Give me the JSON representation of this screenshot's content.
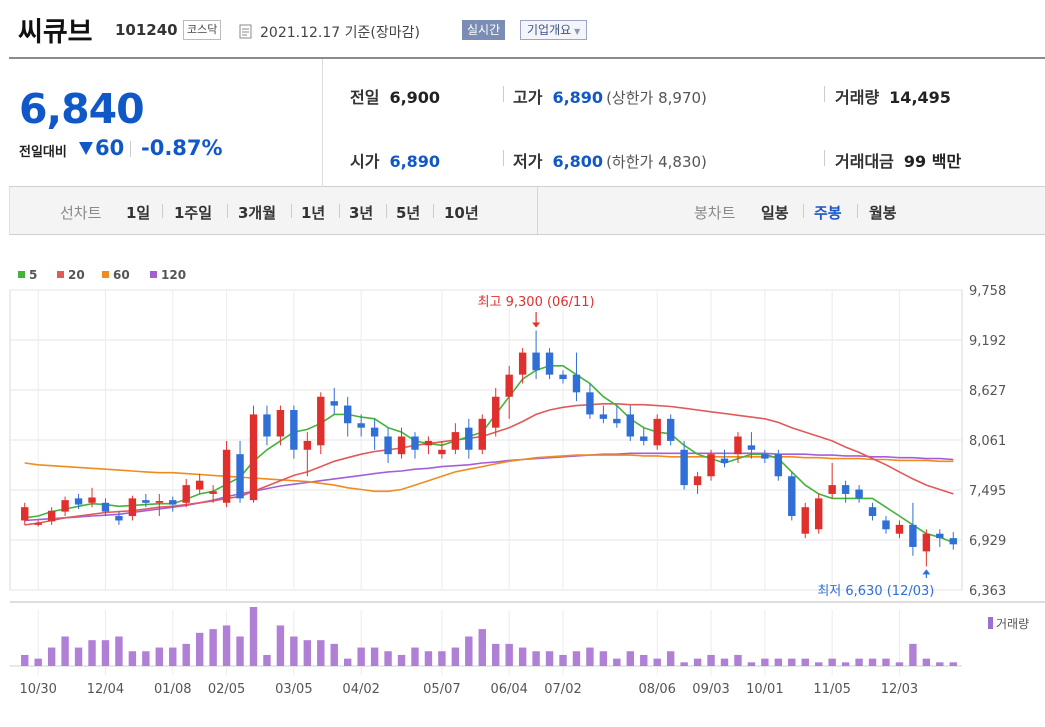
{
  "header": {
    "name": "씨큐브",
    "code": "101240",
    "market": "코스닥",
    "date": "2021.12.17 기준(장마감)",
    "realtime_label": "실시간",
    "company_label": "기업개요"
  },
  "quote": {
    "price": "6,840",
    "change_label": "전일대비",
    "change": "60",
    "change_pct": "-0.87%",
    "prev_close_label": "전일",
    "prev_close": "6,900",
    "open_label": "시가",
    "open": "6,890",
    "high_label": "고가",
    "high": "6,890",
    "upper_limit": "(상한가 8,970)",
    "low_label": "저가",
    "low": "6,800",
    "lower_limit": "(하한가 4,830)",
    "volume_label": "거래량",
    "volume": "14,495",
    "amount_label": "거래대금",
    "amount": "99 백만"
  },
  "period_bar": {
    "line_chart_label": "선차트",
    "periods": [
      "1일",
      "1주일",
      "3개월",
      "1년",
      "3년",
      "5년",
      "10년"
    ],
    "candle_label": "봉차트",
    "candles": [
      "일봉",
      "주봉",
      "월봉"
    ],
    "active_candle": "주봉"
  },
  "colors": {
    "up": "#e0302d",
    "down": "#2f6fd6",
    "ma5": "#44b33a",
    "ma20": "#e05a5a",
    "ma60": "#f08c1e",
    "ma120": "#a55fd6"
  },
  "chart_data": {
    "type": "candlestick",
    "legend": [
      "5",
      "20",
      "60",
      "120"
    ],
    "y_ticks": [
      "9,758",
      "9,192",
      "8,627",
      "8,061",
      "7,495",
      "6,929",
      "6,363"
    ],
    "ylim": [
      6363,
      9758
    ],
    "x_tick_labels": [
      "10/30",
      "12/04",
      "01/08",
      "02/05",
      "03/05",
      "04/02",
      "05/07",
      "06/04",
      "07/02",
      "08/06",
      "09/03",
      "10/01",
      "11/05",
      "12/03"
    ],
    "high_annotation": "최고 9,300 (06/11)",
    "low_annotation": "최저 6,630 (12/03)",
    "volume_label": "거래량",
    "candles": [
      [
        7150,
        7300,
        7100,
        7350
      ],
      [
        7100,
        7120,
        7080,
        7150
      ],
      [
        7140,
        7260,
        7100,
        7300
      ],
      [
        7250,
        7380,
        7200,
        7420
      ],
      [
        7400,
        7330,
        7280,
        7450
      ],
      [
        7350,
        7410,
        7300,
        7520
      ],
      [
        7350,
        7250,
        7200,
        7400
      ],
      [
        7200,
        7150,
        7100,
        7250
      ],
      [
        7200,
        7400,
        7150,
        7430
      ],
      [
        7380,
        7350,
        7300,
        7450
      ],
      [
        7350,
        7370,
        7200,
        7450
      ],
      [
        7380,
        7330,
        7250,
        7420
      ],
      [
        7350,
        7550,
        7300,
        7620
      ],
      [
        7500,
        7600,
        7450,
        7680
      ],
      [
        7450,
        7480,
        7350,
        7550
      ],
      [
        7350,
        7950,
        7300,
        8050
      ],
      [
        7900,
        7400,
        7350,
        8050
      ],
      [
        7380,
        8350,
        7350,
        8450
      ],
      [
        8350,
        8100,
        8000,
        8450
      ],
      [
        8100,
        8400,
        8000,
        8450
      ],
      [
        8400,
        7950,
        7850,
        8450
      ],
      [
        7950,
        8050,
        7650,
        8150
      ],
      [
        8000,
        8550,
        7900,
        8600
      ],
      [
        8500,
        8450,
        8350,
        8650
      ],
      [
        8450,
        8250,
        8100,
        8550
      ],
      [
        8250,
        8200,
        8100,
        8350
      ],
      [
        8200,
        8100,
        7950,
        8300
      ],
      [
        8100,
        7900,
        7800,
        8200
      ],
      [
        7900,
        8100,
        7850,
        8200
      ],
      [
        8100,
        7950,
        7850,
        8150
      ],
      [
        8000,
        8050,
        7900,
        8100
      ],
      [
        7900,
        7950,
        7850,
        8050
      ],
      [
        7950,
        8150,
        7900,
        8250
      ],
      [
        8200,
        7950,
        7850,
        8300
      ],
      [
        7950,
        8300,
        7900,
        8350
      ],
      [
        8200,
        8550,
        8100,
        8650
      ],
      [
        8550,
        8800,
        8300,
        8900
      ],
      [
        8800,
        9050,
        8700,
        9100
      ],
      [
        9050,
        8850,
        8750,
        9300
      ],
      [
        9050,
        8800,
        8750,
        9100
      ],
      [
        8800,
        8750,
        8700,
        8850
      ],
      [
        8800,
        8600,
        8500,
        9050
      ],
      [
        8600,
        8350,
        8300,
        8700
      ],
      [
        8350,
        8300,
        8250,
        8450
      ],
      [
        8300,
        8250,
        8200,
        8450
      ],
      [
        8350,
        8100,
        8050,
        8450
      ],
      [
        8100,
        8050,
        8000,
        8200
      ],
      [
        8000,
        8300,
        7950,
        8350
      ],
      [
        8300,
        8050,
        8000,
        8350
      ],
      [
        7950,
        7550,
        7500,
        8050
      ],
      [
        7550,
        7650,
        7450,
        7700
      ],
      [
        7650,
        7900,
        7600,
        7950
      ],
      [
        7850,
        7800,
        7750,
        7950
      ],
      [
        7900,
        8100,
        7800,
        8150
      ],
      [
        8000,
        7950,
        7850,
        8150
      ],
      [
        7900,
        7850,
        7800,
        7950
      ],
      [
        7900,
        7650,
        7600,
        7950
      ],
      [
        7650,
        7200,
        7150,
        7700
      ],
      [
        7000,
        7300,
        6950,
        7350
      ],
      [
        7050,
        7400,
        7000,
        7450
      ],
      [
        7450,
        7550,
        7400,
        7800
      ],
      [
        7550,
        7450,
        7350,
        7600
      ],
      [
        7500,
        7400,
        7350,
        7550
      ],
      [
        7300,
        7200,
        7150,
        7350
      ],
      [
        7150,
        7050,
        7000,
        7200
      ],
      [
        7000,
        7100,
        6950,
        7150
      ],
      [
        7100,
        6850,
        6750,
        7350
      ],
      [
        6800,
        7000,
        6630,
        7050
      ],
      [
        7000,
        6950,
        6850,
        7050
      ],
      [
        6950,
        6880,
        6820,
        7020
      ]
    ],
    "volumes": [
      3,
      2,
      5,
      8,
      5,
      7,
      7,
      8,
      4,
      4,
      5,
      5,
      6,
      9,
      10,
      11,
      8,
      16,
      3,
      11,
      8,
      7,
      7,
      6,
      2,
      5,
      5,
      4,
      3,
      5,
      4,
      4,
      5,
      8,
      10,
      6,
      6,
      5,
      4,
      4,
      3,
      4,
      5,
      4,
      2,
      4,
      3,
      2,
      4,
      1,
      2,
      3,
      2,
      3,
      1,
      2,
      2,
      2,
      2,
      1,
      2,
      1,
      2,
      2,
      2,
      1,
      6,
      2,
      1,
      1
    ],
    "ma5": [
      7180,
      7200,
      7250,
      7280,
      7310,
      7340,
      7330,
      7310,
      7320,
      7330,
      7340,
      7340,
      7390,
      7450,
      7480,
      7560,
      7640,
      7820,
      7950,
      8050,
      8150,
      8180,
      8250,
      8350,
      8350,
      8320,
      8300,
      8200,
      8150,
      8050,
      8020,
      8000,
      8050,
      8100,
      8150,
      8350,
      8550,
      8750,
      8850,
      8900,
      8900,
      8800,
      8700,
      8550,
      8450,
      8300,
      8200,
      8150,
      8130,
      8000,
      7900,
      7850,
      7800,
      7850,
      7900,
      7900,
      7850,
      7700,
      7550,
      7450,
      7400,
      7400,
      7400,
      7400,
      7300,
      7200,
      7100,
      7000,
      6960,
      6900
    ],
    "ma20": [
      7100,
      7120,
      7150,
      7180,
      7200,
      7220,
      7240,
      7250,
      7260,
      7280,
      7300,
      7310,
      7330,
      7350,
      7370,
      7400,
      7420,
      7480,
      7540,
      7600,
      7660,
      7700,
      7760,
      7820,
      7860,
      7900,
      7930,
      7950,
      7970,
      8000,
      8020,
      8040,
      8060,
      8080,
      8100,
      8150,
      8200,
      8270,
      8350,
      8400,
      8430,
      8450,
      8460,
      8470,
      8470,
      8460,
      8460,
      8450,
      8440,
      8420,
      8400,
      8380,
      8360,
      8340,
      8320,
      8300,
      8260,
      8200,
      8150,
      8100,
      8050,
      7980,
      7920,
      7850,
      7780,
      7700,
      7620,
      7550,
      7500,
      7450
    ],
    "ma60": [
      7800,
      7780,
      7770,
      7760,
      7750,
      7740,
      7730,
      7720,
      7710,
      7700,
      7690,
      7690,
      7680,
      7670,
      7660,
      7650,
      7640,
      7630,
      7620,
      7610,
      7600,
      7590,
      7570,
      7550,
      7520,
      7500,
      7480,
      7480,
      7500,
      7550,
      7600,
      7650,
      7700,
      7730,
      7760,
      7790,
      7820,
      7840,
      7860,
      7870,
      7880,
      7890,
      7890,
      7890,
      7890,
      7890,
      7880,
      7880,
      7870,
      7870,
      7870,
      7870,
      7870,
      7870,
      7870,
      7870,
      7870,
      7870,
      7860,
      7860,
      7850,
      7850,
      7850,
      7840,
      7840,
      7830,
      7830,
      7830,
      7820,
      7820
    ],
    "ma120": [
      7150,
      7160,
      7170,
      7180,
      7190,
      7200,
      7210,
      7220,
      7240,
      7260,
      7280,
      7300,
      7320,
      7350,
      7380,
      7420,
      7450,
      7480,
      7510,
      7540,
      7560,
      7580,
      7600,
      7620,
      7640,
      7660,
      7680,
      7700,
      7710,
      7730,
      7740,
      7760,
      7770,
      7780,
      7800,
      7810,
      7830,
      7840,
      7850,
      7860,
      7870,
      7880,
      7890,
      7900,
      7900,
      7910,
      7910,
      7910,
      7910,
      7910,
      7910,
      7910,
      7910,
      7910,
      7910,
      7910,
      7900,
      7900,
      7900,
      7890,
      7890,
      7880,
      7880,
      7870,
      7870,
      7860,
      7860,
      7850,
      7850,
      7840
    ]
  }
}
